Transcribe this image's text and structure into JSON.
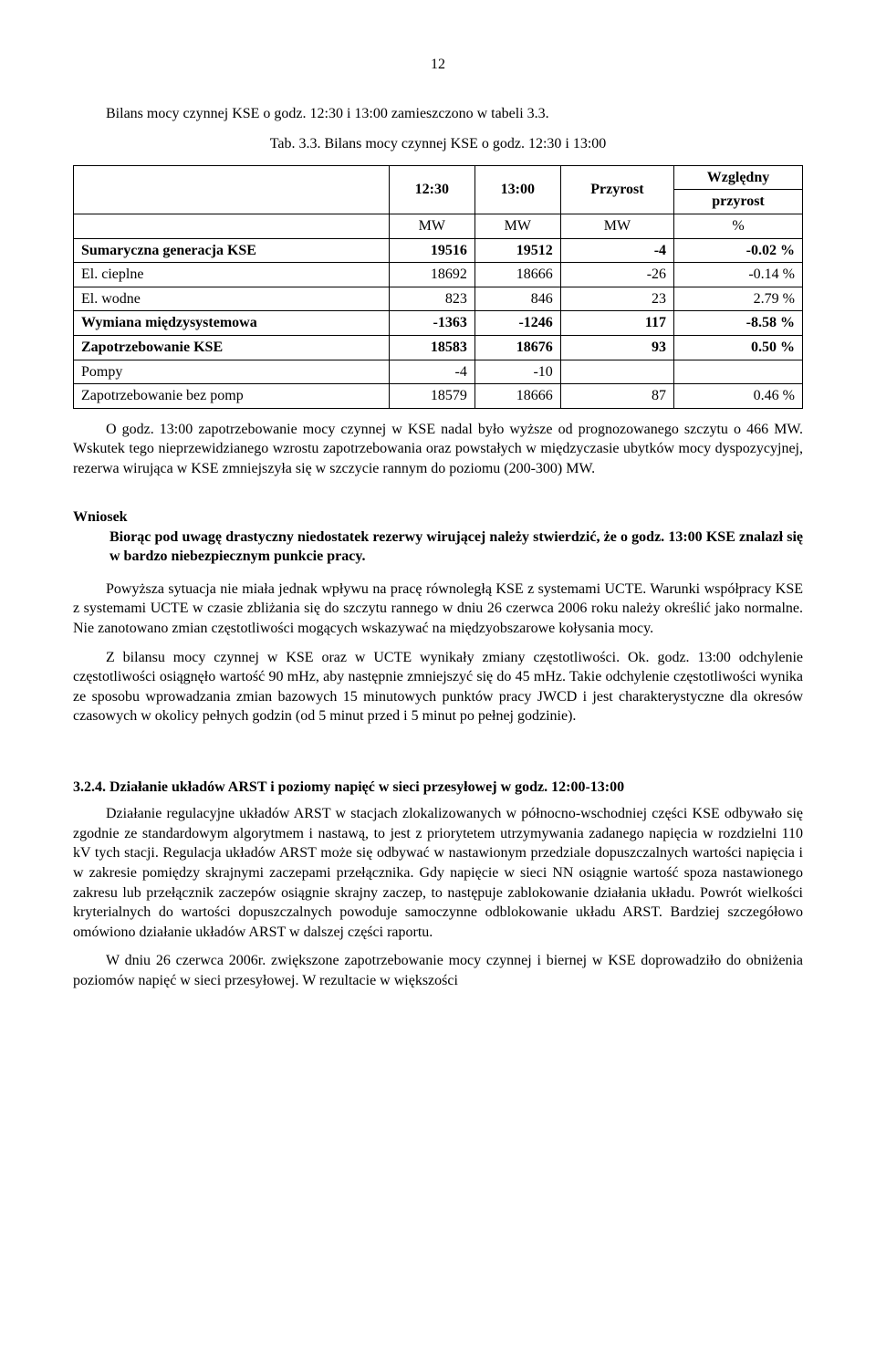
{
  "page_number": "12",
  "intro_line": "Bilans mocy czynnej KSE o godz. 12:30 i 13:00  zamieszczono w tabeli 3.3.",
  "table_caption": "Tab. 3.3. Bilans mocy czynnej  KSE o godz. 12:30 i 13:00",
  "table": {
    "head": {
      "c1": "12:30",
      "c2": "13:00",
      "c3": "Przyrost",
      "c4_top": "Względny",
      "c4_bot": "przyrost",
      "u1": "MW",
      "u2": "MW",
      "u3": "MW",
      "u4": "%"
    },
    "rows": [
      {
        "label": "Sumaryczna generacja KSE",
        "bold": true,
        "v1": "19516",
        "v2": "19512",
        "v3": "-4",
        "v4": "-0.02 %"
      },
      {
        "label": "El. cieplne",
        "bold": false,
        "v1": "18692",
        "v2": "18666",
        "v3": "-26",
        "v4": "-0.14 %"
      },
      {
        "label": "El. wodne",
        "bold": false,
        "v1": "823",
        "v2": "846",
        "v3": "23",
        "v4": "2.79 %"
      },
      {
        "label": "Wymiana międzysystemowa",
        "bold": true,
        "v1": "-1363",
        "v2": "-1246",
        "v3": "117",
        "v4": "-8.58 %"
      },
      {
        "label": "Zapotrzebowanie KSE",
        "bold": true,
        "v1": "18583",
        "v2": "18676",
        "v3": "93",
        "v4": "0.50 %"
      },
      {
        "label": "Pompy",
        "bold": false,
        "v1": "-4",
        "v2": "-10",
        "v3": "",
        "v4": ""
      },
      {
        "label": "Zapotrzebowanie bez pomp",
        "bold": false,
        "v1": "18579",
        "v2": "18666",
        "v3": "87",
        "v4": "0.46 %"
      }
    ]
  },
  "after_table_para": "O godz. 13:00 zapotrzebowanie mocy czynnej w KSE nadal było wyższe od prognozowanego szczytu o 466 MW. Wskutek tego nieprzewidzianego wzrostu zapotrzebowania oraz powstałych w międzyczasie ubytków mocy dyspozycyjnej, rezerwa wirująca w KSE zmniejszyła się w szczycie rannym do poziomu (200-300) MW.",
  "wniosek_label": "Wniosek",
  "wniosek_body": "Biorąc pod uwagę drastyczny niedostatek rezerwy wirującej należy stwierdzić, że o godz. 13:00 KSE znalazł się w bardzo niebezpiecznym punkcie pracy.",
  "para_ucte1": "Powyższa sytuacja nie miała jednak wpływu na pracę równoległą KSE z systemami UCTE. Warunki współpracy KSE z systemami UCTE w czasie zbliżania się do szczytu rannego w dniu 26 czerwca 2006 roku należy określić jako normalne. Nie zanotowano zmian częstotliwości mogących wskazywać na międzyobszarowe kołysania mocy.",
  "para_ucte2": "Z bilansu mocy czynnej w KSE oraz w UCTE wynikały zmiany częstotliwości. Ok. godz. 13:00 odchylenie częstotliwości osiągnęło wartość 90 mHz, aby następnie zmniejszyć się do 45 mHz. Takie odchylenie częstotliwości wynika ze sposobu wprowadzania zmian bazowych 15 minutowych punktów pracy JWCD i jest charakterystyczne dla okresów czasowych w okolicy pełnych godzin (od 5 minut przed i 5 minut po pełnej godzinie).",
  "section_324": "3.2.4. Działanie układów ARST i poziomy napięć w sieci przesyłowej w godz. 12:00-13:00",
  "para_arst1": "Działanie regulacyjne układów ARST w stacjach zlokalizowanych w północno-wschodniej części KSE odbywało się zgodnie ze standardowym algorytmem i nastawą, to jest z priorytetem utrzymywania zadanego napięcia w rozdzielni 110 kV tych stacji. Regulacja układów ARST może się odbywać w nastawionym przedziale dopuszczalnych wartości napięcia i w zakresie pomiędzy skrajnymi zaczepami przełącznika. Gdy napięcie w sieci NN osiągnie wartość spoza nastawionego zakresu lub przełącznik zaczepów osiągnie skrajny zaczep, to następuje zablokowanie działania układu. Powrót wielkości kryterialnych do wartości dopuszczalnych powoduje samoczynne odblokowanie układu ARST. Bardziej szczegółowo omówiono działanie układów ARST w dalszej części raportu.",
  "para_arst2": "W dniu 26 czerwca 2006r. zwiększone zapotrzebowanie mocy czynnej i biernej w KSE doprowadziło do obniżenia poziomów napięć w sieci przesyłowej. W rezultacie w większości"
}
